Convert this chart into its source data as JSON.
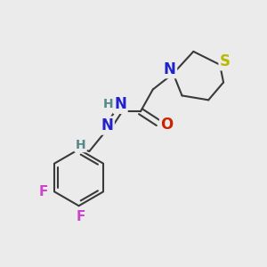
{
  "background_color": "#ebebeb",
  "bond_color": "#3a3a3a",
  "bond_width": 1.5,
  "fig_width": 3.0,
  "fig_height": 3.0,
  "dpi": 100,
  "colors": {
    "S": "#b8b800",
    "N": "#2222cc",
    "O": "#cc2200",
    "H": "#558888",
    "F": "#cc44cc",
    "C": "#3a3a3a"
  }
}
